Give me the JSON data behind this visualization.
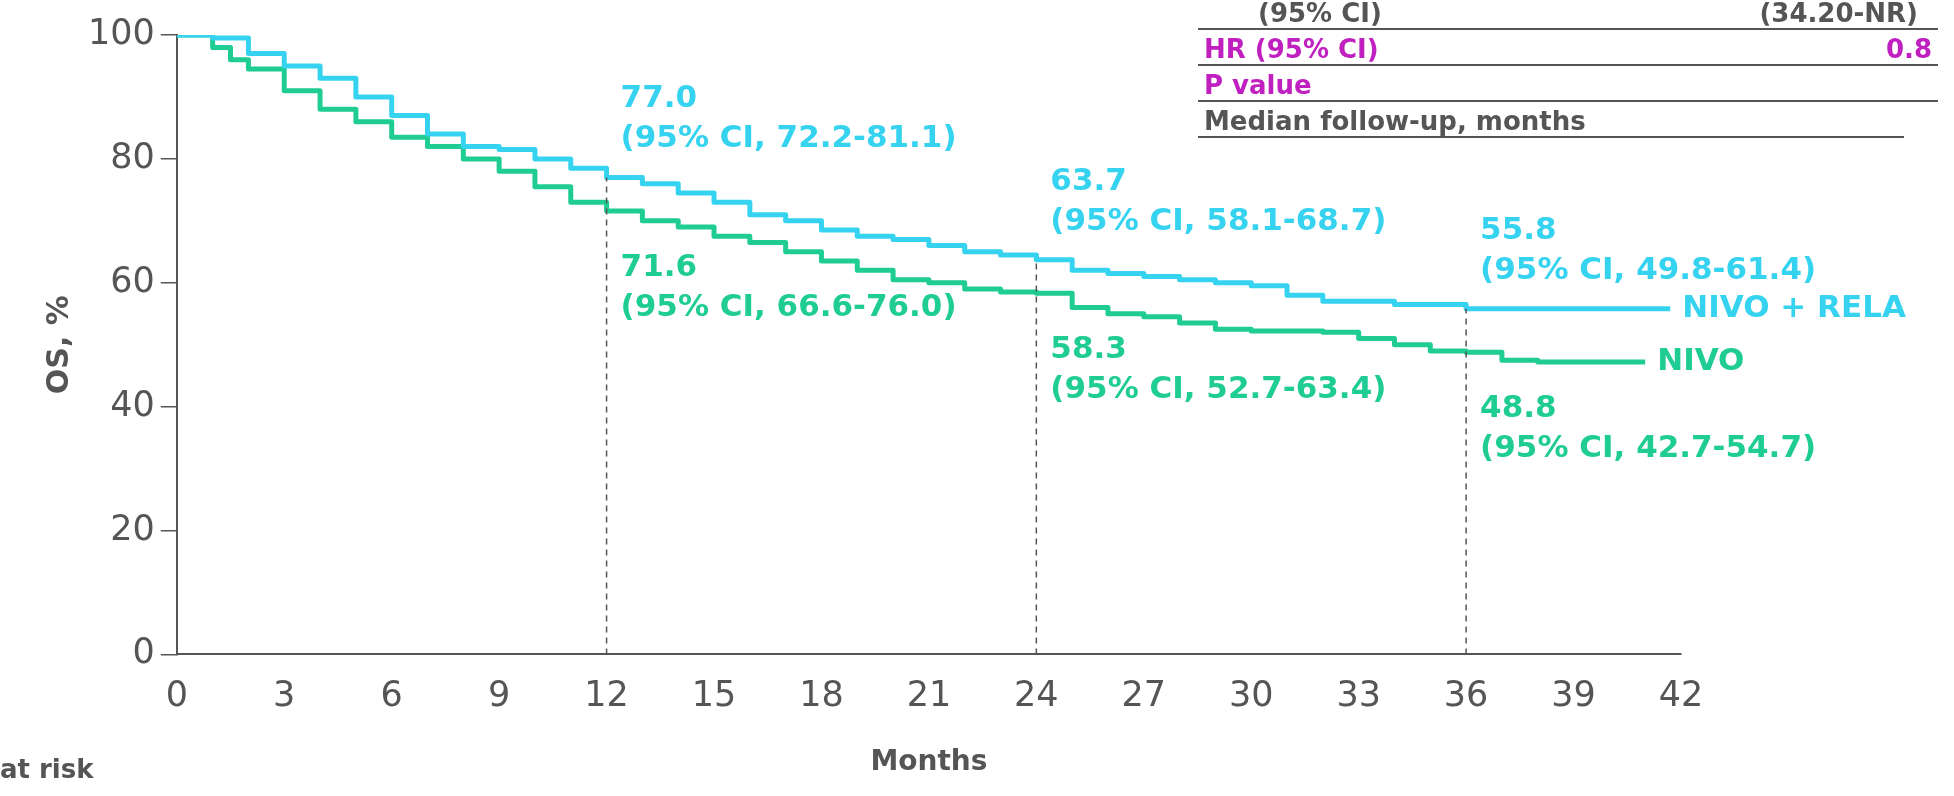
{
  "chart_data": {
    "type": "step",
    "xlabel": "Months",
    "ylabel": "OS, %",
    "xlim": [
      0,
      42
    ],
    "xticks": [
      0,
      3,
      6,
      9,
      12,
      15,
      18,
      21,
      24,
      27,
      30,
      33,
      36,
      39,
      42
    ],
    "ylim": [
      0,
      100
    ],
    "yticks": [
      0,
      20,
      40,
      60,
      80,
      100
    ],
    "grid": false,
    "legend": false,
    "marker": "none",
    "series": [
      {
        "name": "NIVO + RELA",
        "color": "#36d3f0",
        "x": [
          0,
          1,
          2,
          3,
          4,
          5,
          6,
          7,
          8,
          9,
          10,
          11,
          12,
          13,
          14,
          15,
          16,
          17,
          18,
          19,
          20,
          21,
          22,
          23,
          24,
          25,
          26,
          27,
          28,
          29,
          30,
          31,
          32,
          33,
          34,
          36,
          40,
          41.7
        ],
        "values": [
          100,
          99.5,
          97,
          95,
          93,
          90,
          87,
          84,
          82,
          81.5,
          80,
          78.5,
          77.0,
          76,
          74.5,
          73,
          71,
          70,
          68.5,
          67.5,
          67,
          66,
          65,
          64.5,
          63.7,
          62,
          61.5,
          61,
          60.5,
          60,
          59.5,
          58,
          57,
          57,
          56.5,
          55.8,
          55.8,
          55.8
        ]
      },
      {
        "name": "NIVO",
        "color": "#1fcc94",
        "x": [
          0,
          1,
          1.5,
          2,
          3,
          4,
          5,
          6,
          7,
          8,
          9,
          10,
          11,
          12,
          13,
          14,
          15,
          16,
          17,
          18,
          19,
          20,
          21,
          22,
          23,
          24,
          25,
          26,
          27,
          28,
          29,
          30,
          32,
          33,
          34,
          35,
          36,
          37,
          38,
          41
        ],
        "values": [
          100,
          98,
          96,
          94.5,
          91,
          88,
          86,
          83.5,
          82,
          80,
          78,
          75.5,
          73,
          71.6,
          70,
          69,
          67.5,
          66.5,
          65,
          63.5,
          62,
          60.5,
          60,
          59,
          58.5,
          58.3,
          56,
          55,
          54.5,
          53.5,
          52.5,
          52.2,
          52,
          51,
          50,
          49,
          48.8,
          47.5,
          47.2,
          47.2
        ]
      }
    ],
    "ref_lines": [
      {
        "axis": "x",
        "value": 12,
        "line_style": "dashed",
        "color": "#555555"
      },
      {
        "axis": "x",
        "value": 24,
        "line_style": "dashed",
        "color": "#555555"
      },
      {
        "axis": "x",
        "value": 36,
        "line_style": "dashed",
        "color": "#555555"
      }
    ],
    "annotations": [
      "(95% CI)",
      "(34.20-NR)",
      "HR (95% CI)",
      "0.8",
      "P value",
      "Median follow-up, months",
      "at risk",
      {
        "text": "77.0",
        "x": 12,
        "y": 77.0
      },
      {
        "text": "(95% CI, 72.2-81.1)",
        "x": 12,
        "y": 77.0
      },
      {
        "text": "71.6",
        "x": 12,
        "y": 71.6
      },
      {
        "text": "(95% CI, 66.6-76.0)",
        "x": 12,
        "y": 71.6
      },
      {
        "text": "63.7",
        "x": 24,
        "y": 63.7
      },
      {
        "text": "(95% CI, 58.1-68.7)",
        "x": 24,
        "y": 63.7
      },
      {
        "text": "58.3",
        "x": 24,
        "y": 58.3
      },
      {
        "text": "(95% CI, 52.7-63.4)",
        "x": 24,
        "y": 58.3
      },
      {
        "text": "55.8",
        "x": 36,
        "y": 55.8
      },
      {
        "text": "(95% CI, 49.8-61.4)",
        "x": 36,
        "y": 55.8
      },
      {
        "text": "48.8",
        "x": 36,
        "y": 48.8
      },
      {
        "text": "(95% CI, 42.7-54.7)",
        "x": 36,
        "y": 48.8
      }
    ]
  }
}
